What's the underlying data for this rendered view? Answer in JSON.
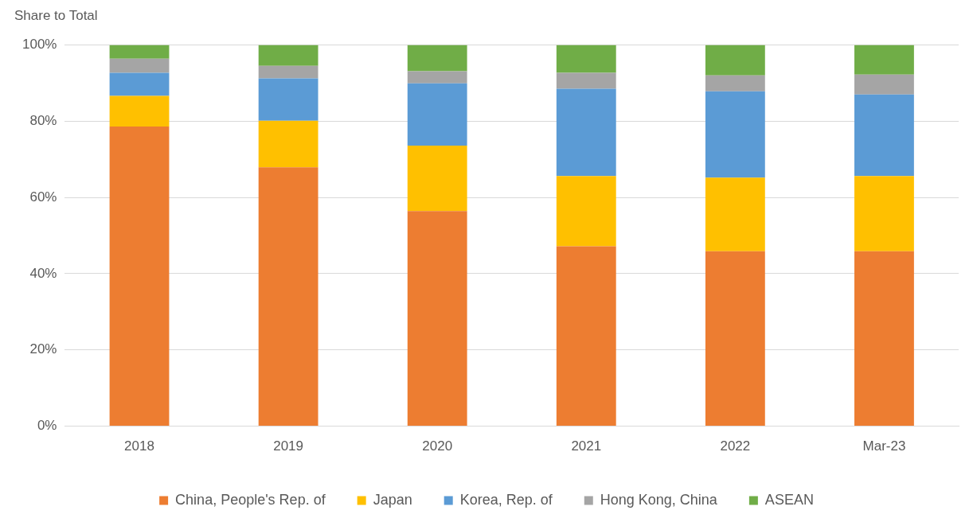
{
  "chart_data": {
    "type": "bar",
    "stacked": true,
    "ylabel": "Share to Total",
    "categories": [
      "2018",
      "2019",
      "2020",
      "2021",
      "2022",
      "Mar-23"
    ],
    "series": [
      {
        "name": "China, People's Rep. of",
        "color": "#ed7d31",
        "values": [
          78.6,
          67.9,
          56.4,
          47.2,
          45.9,
          45.9
        ]
      },
      {
        "name": "Japan",
        "color": "#ffc000",
        "values": [
          8.0,
          12.2,
          17.2,
          18.4,
          19.3,
          19.7
        ]
      },
      {
        "name": "Korea, Rep. of",
        "color": "#5b9bd5",
        "values": [
          6.1,
          11.1,
          16.3,
          22.9,
          22.6,
          21.4
        ]
      },
      {
        "name": "Hong Kong, China",
        "color": "#a5a5a5",
        "values": [
          3.7,
          3.3,
          3.2,
          4.2,
          4.2,
          5.2
        ]
      },
      {
        "name": "ASEAN",
        "color": "#70ad47",
        "values": [
          3.6,
          5.5,
          6.9,
          7.3,
          8.0,
          7.8
        ]
      }
    ],
    "ylim": [
      0,
      100
    ],
    "yticks": [
      {
        "value": 0,
        "label": "0%"
      },
      {
        "value": 20,
        "label": "20%"
      },
      {
        "value": 40,
        "label": "40%"
      },
      {
        "value": 60,
        "label": "60%"
      },
      {
        "value": 80,
        "label": "80%"
      },
      {
        "value": 100,
        "label": "100%"
      }
    ],
    "grid": "y",
    "legend": "bottom"
  }
}
